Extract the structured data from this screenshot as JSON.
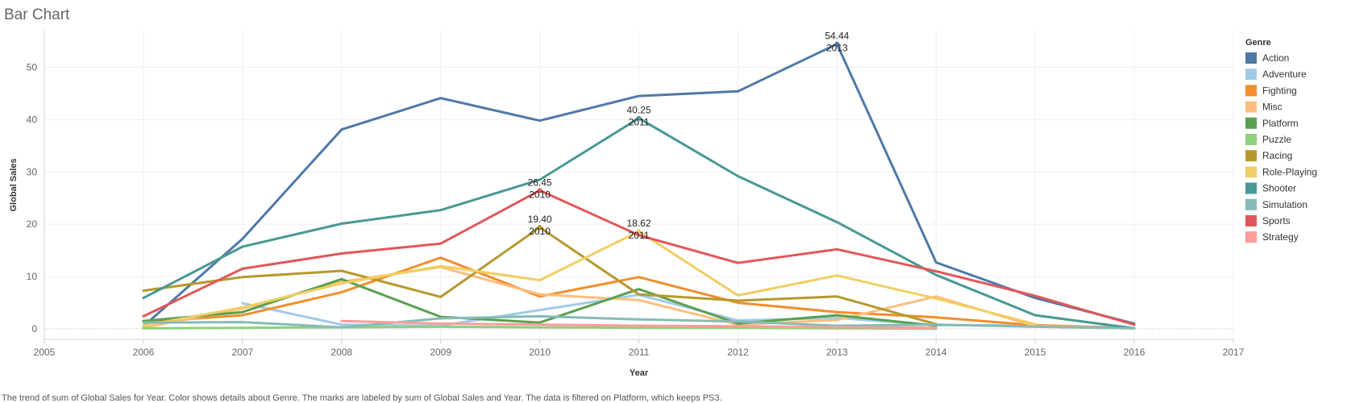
{
  "title": "Bar Chart",
  "caption": "The trend of sum of Global Sales for Year.  Color shows details about Genre.  The marks are labeled by sum of Global Sales and Year. The data is filtered on Platform, which keeps PS3.",
  "chart_data": {
    "type": "line",
    "xlabel": "Year",
    "ylabel": "Global Sales",
    "xlim": [
      2005,
      2017
    ],
    "ylim": [
      -2,
      57
    ],
    "x_ticks": [
      2005,
      2006,
      2007,
      2008,
      2009,
      2010,
      2011,
      2012,
      2013,
      2014,
      2015,
      2016,
      2017
    ],
    "y_ticks": [
      0,
      10,
      20,
      30,
      40,
      50
    ],
    "legend_title": "Genre",
    "legend_position": "right",
    "series": [
      {
        "name": "Action",
        "color": "#4e79a7",
        "x": [
          2006,
          2007,
          2008,
          2009,
          2010,
          2011,
          2012,
          2013,
          2014,
          2015,
          2016
        ],
        "y": [
          0.5,
          17.2,
          38.1,
          44.1,
          39.8,
          44.5,
          45.4,
          54.44,
          12.7,
          5.9,
          1.0
        ]
      },
      {
        "name": "Adventure",
        "color": "#a0cbe8",
        "x": [
          2007,
          2008,
          2009,
          2010,
          2011,
          2012,
          2013,
          2014,
          2015,
          2016
        ],
        "y": [
          4.9,
          0.8,
          0.6,
          3.6,
          6.5,
          1.6,
          2.1,
          0.7,
          0.7,
          0.2
        ]
      },
      {
        "name": "Fighting",
        "color": "#f28e2b",
        "x": [
          2006,
          2007,
          2008,
          2009,
          2010,
          2011,
          2012,
          2013,
          2014,
          2015,
          2016
        ],
        "y": [
          1.3,
          2.6,
          7.0,
          13.6,
          6.2,
          9.9,
          5.0,
          3.2,
          2.2,
          0.7,
          0.1
        ]
      },
      {
        "name": "Misc",
        "color": "#ffbe7d",
        "x": [
          2006,
          2007,
          2008,
          2009,
          2010,
          2011,
          2012,
          2013,
          2014,
          2015,
          2016
        ],
        "y": [
          0.2,
          3.9,
          9.0,
          11.8,
          6.6,
          5.5,
          0.8,
          1.7,
          6.2,
          0.5,
          0.1
        ]
      },
      {
        "name": "Platform",
        "color": "#59a14f",
        "x": [
          2006,
          2007,
          2008,
          2009,
          2010,
          2011,
          2012,
          2013,
          2014
        ],
        "y": [
          1.5,
          3.2,
          9.5,
          2.3,
          1.2,
          7.6,
          1.0,
          2.6,
          0.6
        ]
      },
      {
        "name": "Puzzle",
        "color": "#8cd17d",
        "x": [
          2006,
          2007,
          2008,
          2009,
          2010,
          2011,
          2012,
          2013,
          2014
        ],
        "y": [
          0.1,
          0.2,
          0.3,
          0.4,
          0.3,
          0.2,
          0.2,
          0.1,
          0.05
        ]
      },
      {
        "name": "Racing",
        "color": "#b6992d",
        "x": [
          2006,
          2007,
          2008,
          2009,
          2010,
          2011,
          2012,
          2013,
          2014
        ],
        "y": [
          7.3,
          9.9,
          11.1,
          6.1,
          19.4,
          6.6,
          5.4,
          6.2,
          0.9
        ]
      },
      {
        "name": "Role-Playing",
        "color": "#f1ce63",
        "x": [
          2006,
          2007,
          2008,
          2009,
          2010,
          2011,
          2012,
          2013,
          2014,
          2015
        ],
        "y": [
          0.6,
          4.1,
          8.7,
          12.0,
          9.3,
          18.62,
          6.4,
          10.2,
          5.8,
          0.9
        ]
      },
      {
        "name": "Shooter",
        "color": "#499894",
        "x": [
          2006,
          2007,
          2008,
          2009,
          2010,
          2011,
          2012,
          2013,
          2014,
          2015,
          2016
        ],
        "y": [
          5.9,
          15.7,
          20.1,
          22.7,
          28.5,
          40.25,
          29.2,
          20.4,
          10.3,
          2.6,
          0.1
        ]
      },
      {
        "name": "Simulation",
        "color": "#86bcb6",
        "x": [
          2006,
          2007,
          2008,
          2009,
          2010,
          2011,
          2012,
          2013,
          2014,
          2015,
          2016
        ],
        "y": [
          1.2,
          1.3,
          0.3,
          2.0,
          2.4,
          1.8,
          1.4,
          0.6,
          0.8,
          0.4,
          0.1
        ]
      },
      {
        "name": "Sports",
        "color": "#e15759",
        "x": [
          2006,
          2007,
          2008,
          2009,
          2010,
          2011,
          2012,
          2013,
          2014,
          2015,
          2016
        ],
        "y": [
          2.4,
          11.5,
          14.4,
          16.3,
          26.45,
          17.9,
          12.6,
          15.2,
          11.0,
          6.3,
          0.8
        ]
      },
      {
        "name": "Strategy",
        "color": "#ff9d9a",
        "x": [
          2008,
          2009,
          2010,
          2011,
          2012,
          2013,
          2014
        ],
        "y": [
          1.5,
          1.0,
          0.8,
          0.6,
          0.5,
          0.3,
          0.2
        ]
      }
    ],
    "annotations": [
      {
        "series": "Action",
        "value": "54.44",
        "year": "2013",
        "x": 2013,
        "y": 54.44
      },
      {
        "series": "Shooter",
        "value": "40.25",
        "year": "2011",
        "x": 2011,
        "y": 40.25
      },
      {
        "series": "Sports",
        "value": "26.45",
        "year": "2010",
        "x": 2010,
        "y": 26.45
      },
      {
        "series": "Role-Playing",
        "value": "18.62",
        "year": "2011",
        "x": 2011,
        "y": 18.62
      },
      {
        "series": "Racing",
        "value": "19.40",
        "year": "2010",
        "x": 2010,
        "y": 19.4
      }
    ]
  }
}
